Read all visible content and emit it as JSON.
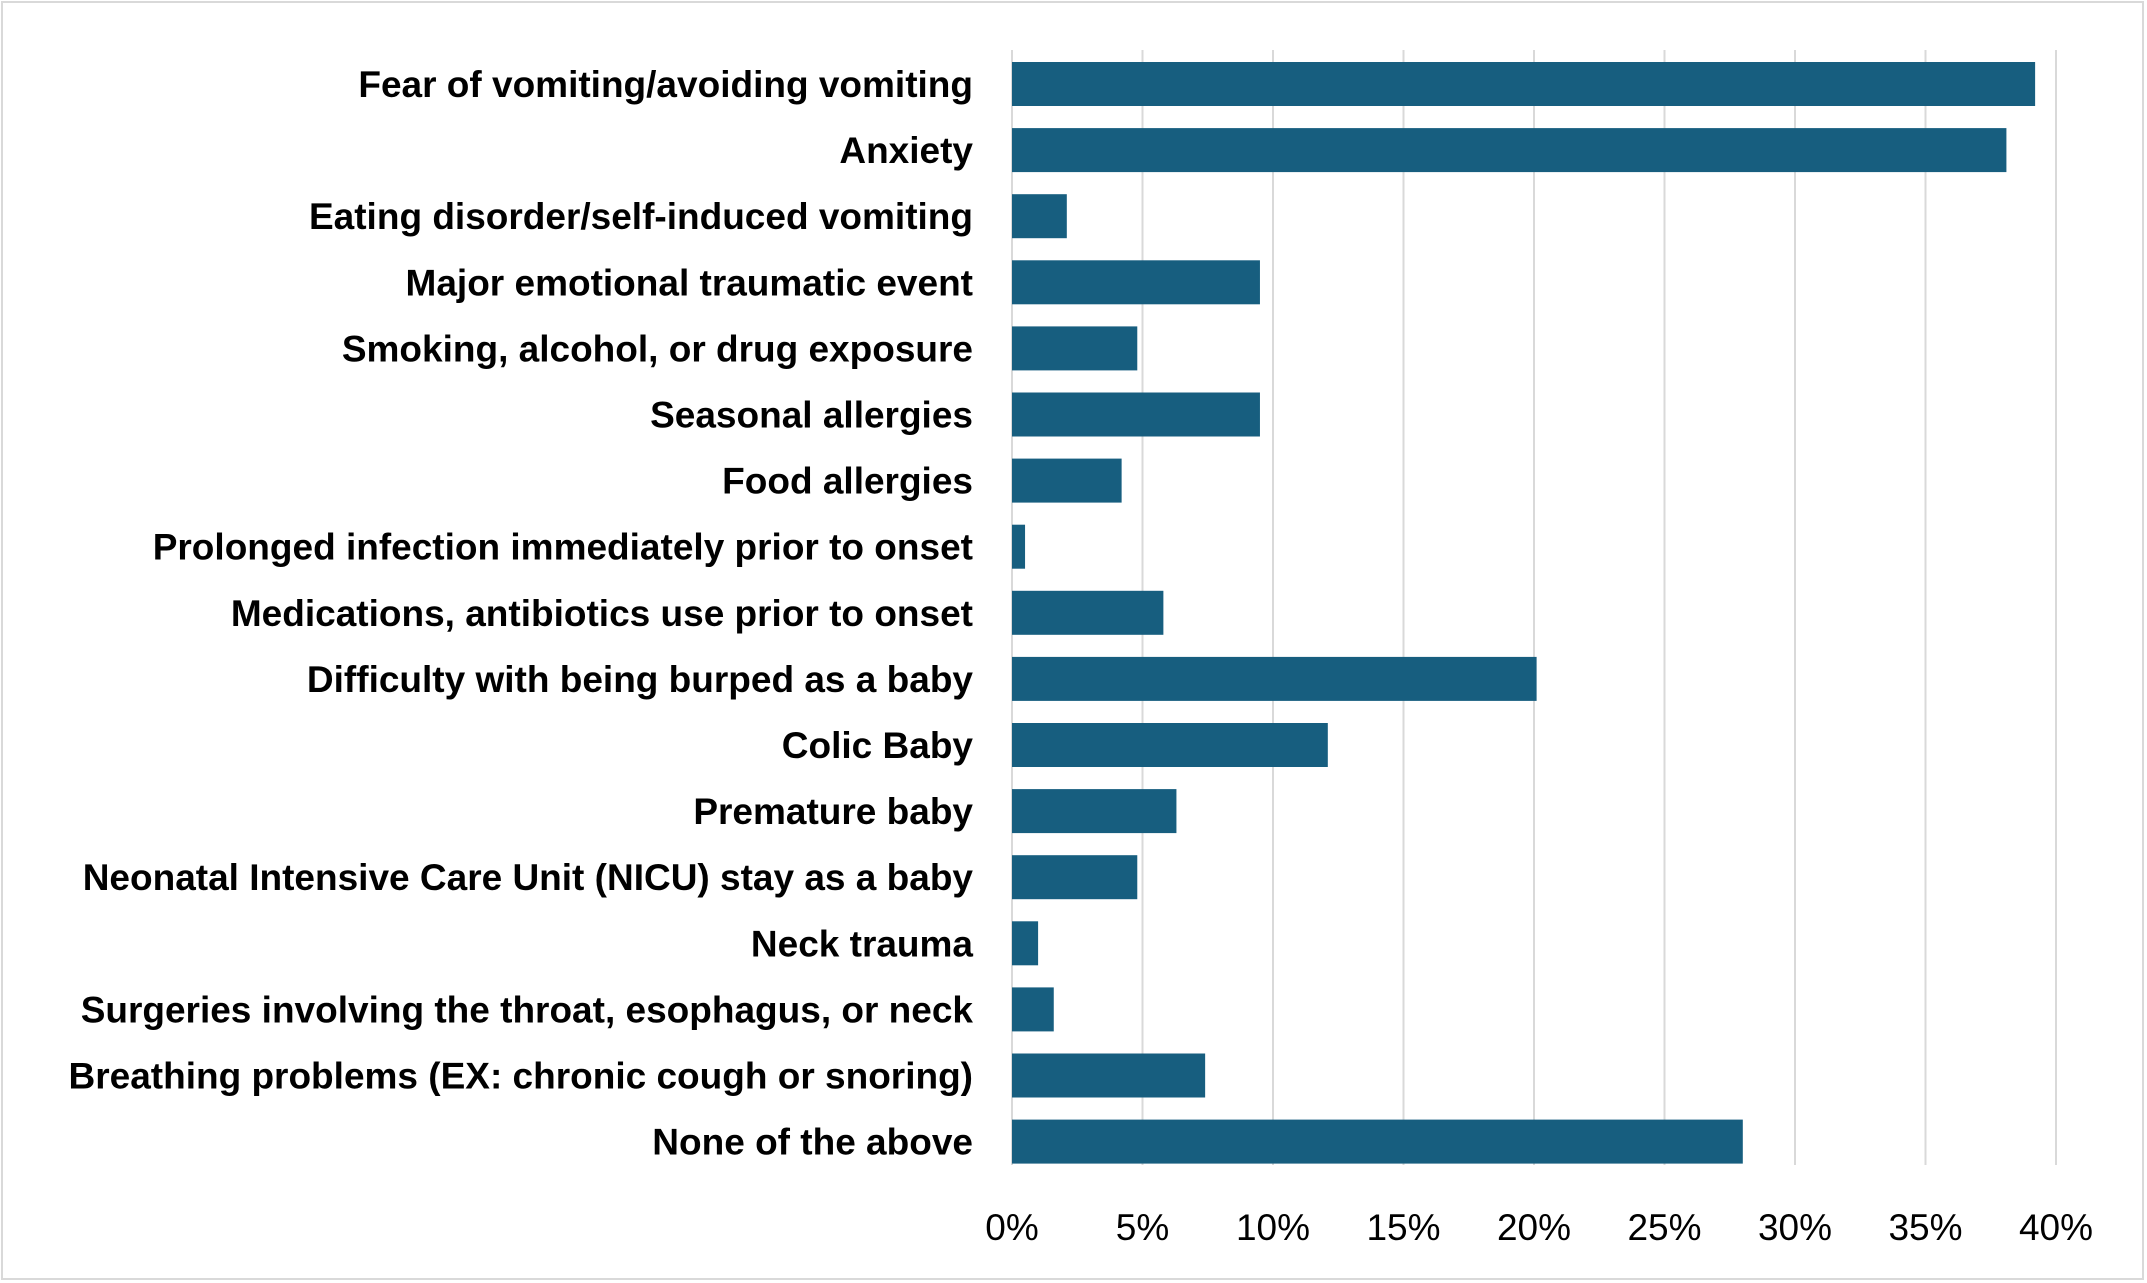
{
  "chart_data": {
    "type": "bar",
    "orientation": "horizontal",
    "title": "",
    "xlabel": "",
    "ylabel": "",
    "categories": [
      "Fear of vomiting/avoiding vomiting",
      "Anxiety",
      "Eating disorder/self-induced vomiting",
      "Major emotional traumatic event",
      "Smoking, alcohol, or drug exposure",
      "Seasonal allergies",
      "Food allergies",
      "Prolonged infection immediately prior to onset",
      "Medications, antibiotics use prior to onset",
      "Difficulty with being burped as a baby",
      "Colic Baby",
      "Premature baby",
      "Neonatal Intensive Care Unit (NICU) stay as a baby",
      "Neck trauma",
      "Surgeries involving the throat, esophagus, or neck",
      "Breathing problems (EX: chronic cough or snoring)",
      "None of the above"
    ],
    "values": [
      39.2,
      38.1,
      2.1,
      9.5,
      4.8,
      9.5,
      4.2,
      0.5,
      5.8,
      20.1,
      12.1,
      6.3,
      4.8,
      1.0,
      1.6,
      7.4,
      28.0
    ],
    "xlim": [
      0,
      40
    ],
    "ticks": [
      0,
      5,
      10,
      15,
      20,
      25,
      30,
      35,
      40
    ],
    "tick_labels": [
      "0%",
      "5%",
      "10%",
      "15%",
      "20%",
      "25%",
      "30%",
      "35%",
      "40%"
    ],
    "grid": true,
    "legend": "none",
    "bar_color": "#175e7f",
    "grid_color": "#d9d9d9"
  }
}
